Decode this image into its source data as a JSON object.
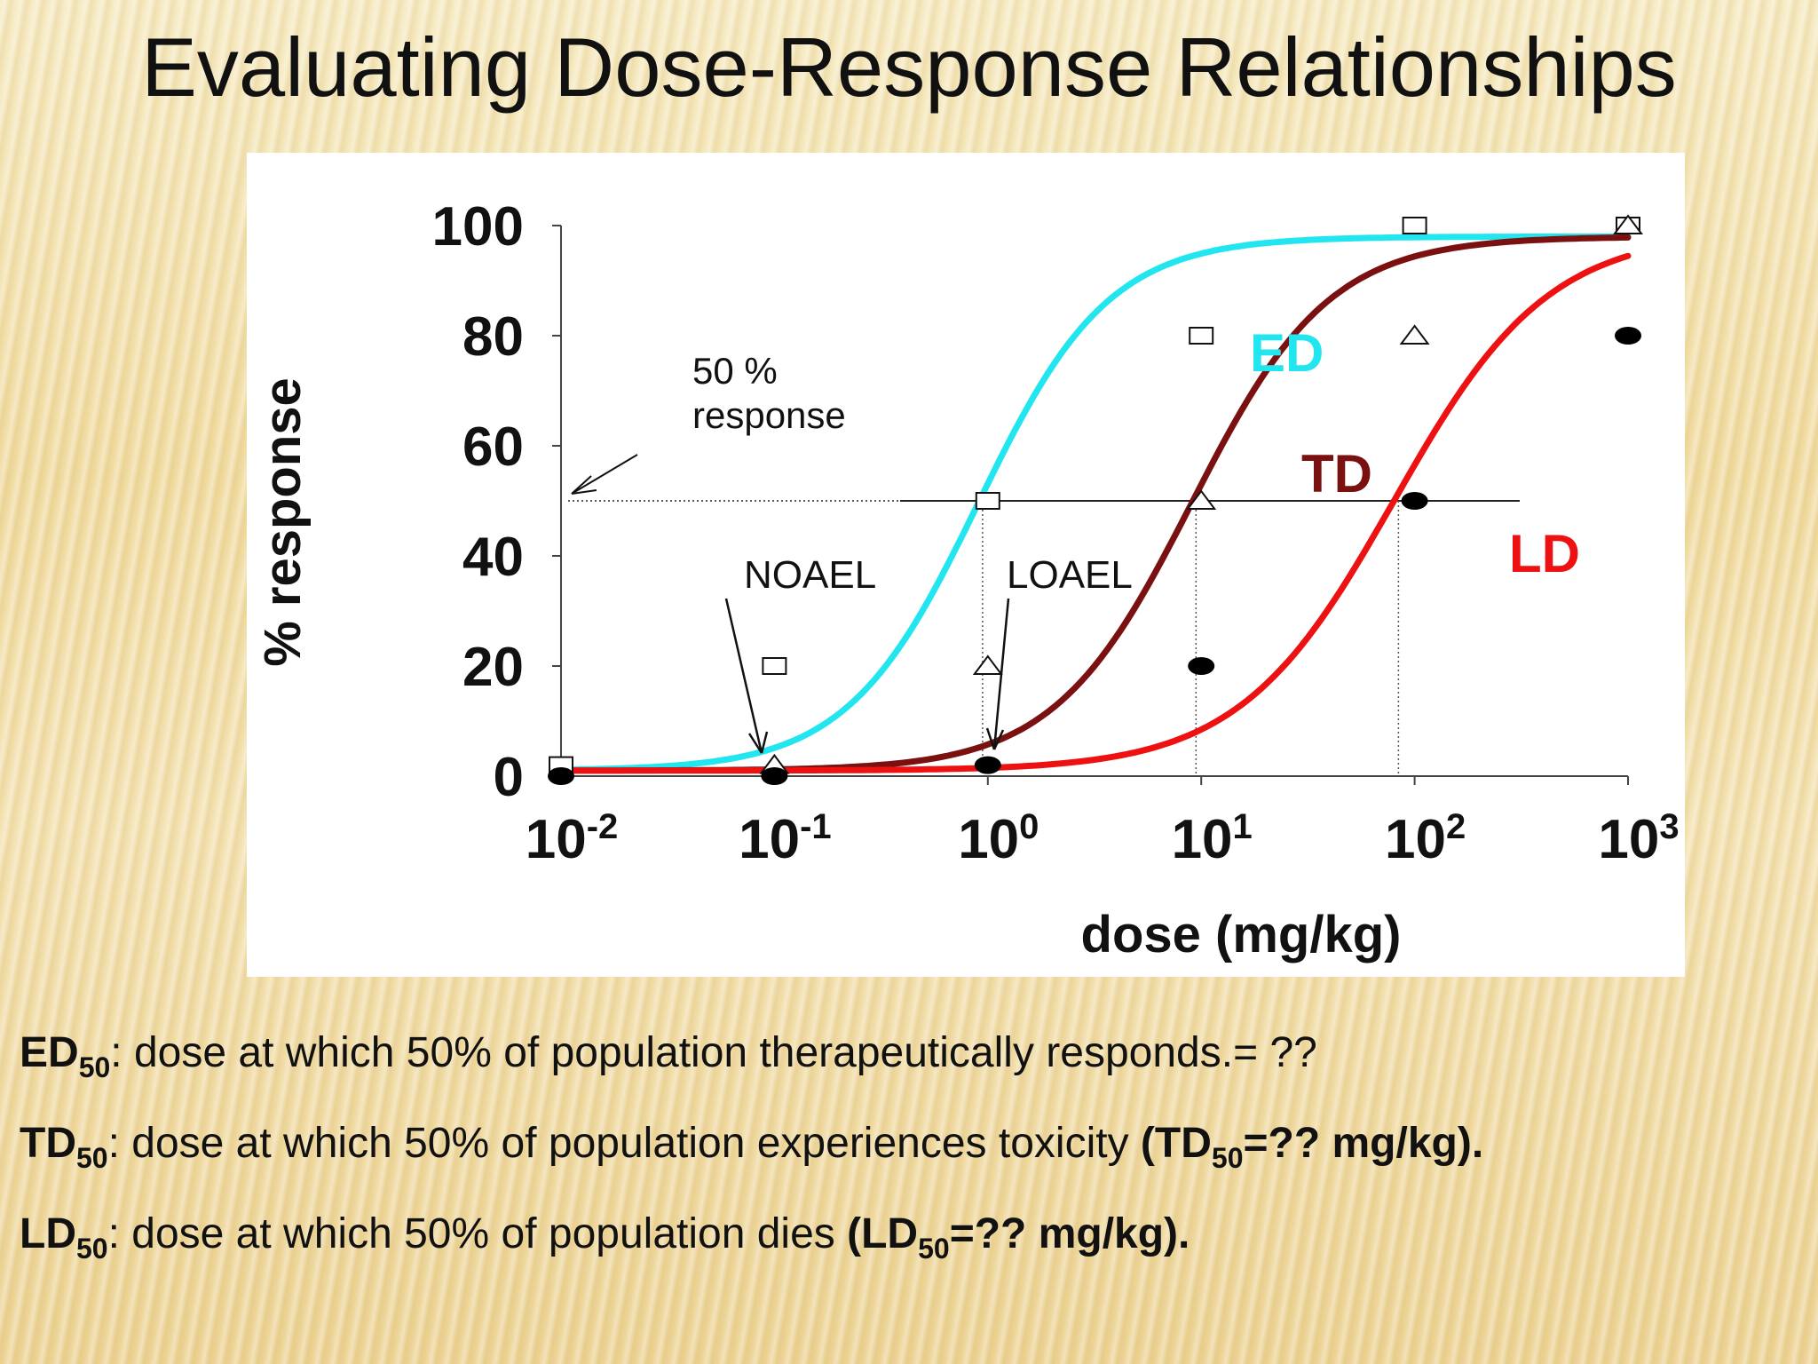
{
  "title": "Evaluating Dose-Response Relationships",
  "chart_data": {
    "type": "line",
    "xlabel": "dose (mg/kg)",
    "ylabel": "% response",
    "x_scale": "log",
    "x_ticks": [
      {
        "base": "10",
        "exp": "-2",
        "value": 0.01
      },
      {
        "base": "10",
        "exp": "-1",
        "value": 0.1
      },
      {
        "base": "10",
        "exp": "0",
        "value": 1
      },
      {
        "base": "10",
        "exp": "1",
        "value": 10
      },
      {
        "base": "10",
        "exp": "2",
        "value": 100
      },
      {
        "base": "10",
        "exp": "3",
        "value": 1000
      }
    ],
    "y_ticks": [
      "0",
      "20",
      "40",
      "60",
      "80",
      "100"
    ],
    "xlim": [
      0.01,
      1000
    ],
    "ylim": [
      0,
      100
    ],
    "series": [
      {
        "name": "ED",
        "color": "#22e6ef",
        "ed50": 0.9,
        "slope": 1.05,
        "points_marker": "square",
        "points": [
          {
            "x": 0.01,
            "y": 2
          },
          {
            "x": 0.1,
            "y": 20
          },
          {
            "x": 1,
            "y": 50
          },
          {
            "x": 10,
            "y": 80
          },
          {
            "x": 100,
            "y": 100
          },
          {
            "x": 1000,
            "y": 100
          }
        ]
      },
      {
        "name": "TD",
        "color": "#7a1010",
        "ed50": 9.0,
        "slope": 1.0,
        "points_marker": "triangle",
        "points": [
          {
            "x": 0.1,
            "y": 2
          },
          {
            "x": 1,
            "y": 20
          },
          {
            "x": 10,
            "y": 50
          },
          {
            "x": 100,
            "y": 80
          },
          {
            "x": 1000,
            "y": 100
          }
        ]
      },
      {
        "name": "LD",
        "color": "#ee1111",
        "ed50": 80,
        "slope": 1.0,
        "points_marker": "filled-ellipse",
        "points": [
          {
            "x": 0.01,
            "y": 0
          },
          {
            "x": 0.1,
            "y": 0
          },
          {
            "x": 1,
            "y": 2
          },
          {
            "x": 10,
            "y": 20
          },
          {
            "x": 100,
            "y": 50
          },
          {
            "x": 1000,
            "y": 80
          }
        ]
      }
    ],
    "annotations": {
      "response_label_1": "50 %",
      "response_label_2": "response",
      "noael": "NOAEL",
      "loael": "LOAEL",
      "response_level": 50
    }
  },
  "definitions": [
    {
      "abbr": "ED",
      "sub": "50",
      "text": ": dose at which 50% of population therapeutically responds.= ??",
      "bold_tail": "",
      "bold_tail_sub": "",
      "bold_tail_end": ""
    },
    {
      "abbr": "TD",
      "sub": "50",
      "text": ": dose at which 50% of population experiences toxicity ",
      "bold_tail": "(TD",
      "bold_tail_sub": "50",
      "bold_tail_end": "=?? mg/kg)."
    },
    {
      "abbr": "LD",
      "sub": "50",
      "text": ": dose at which 50% of population dies ",
      "bold_tail": "(LD",
      "bold_tail_sub": "50",
      "bold_tail_end": "=?? mg/kg)."
    }
  ]
}
